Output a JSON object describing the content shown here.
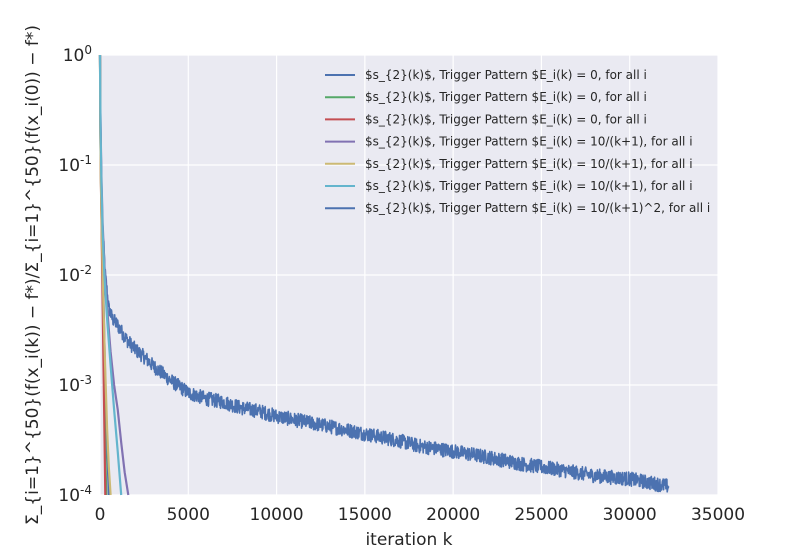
{
  "chart_data": {
    "type": "line",
    "title": "",
    "xlabel": "iteration k",
    "ylabel": "Σ_{i=1}^{50}(f(x_i(k)) − f*)/Σ_{i=1}^{50}(f(x_i(0)) − f*)",
    "xlim": [
      0,
      35000
    ],
    "ylim": [
      0.0001,
      1
    ],
    "yscale": "log",
    "grid": true,
    "legend_position": "top-right",
    "x_ticks": [
      0,
      5000,
      10000,
      15000,
      20000,
      25000,
      30000,
      35000
    ],
    "x_tick_labels": [
      "0",
      "5000",
      "10000",
      "15000",
      "20000",
      "25000",
      "30000",
      "35000"
    ],
    "y_ticks": [
      1,
      0.1,
      0.01,
      0.001,
      0.0001
    ],
    "y_tick_labels": [
      {
        "base": "10",
        "exp": "0"
      },
      {
        "base": "10",
        "exp": "-1"
      },
      {
        "base": "10",
        "exp": "-2"
      },
      {
        "base": "10",
        "exp": "-3"
      },
      {
        "base": "10",
        "exp": "-4"
      }
    ],
    "series": [
      {
        "name": "$s_{2}(k)$, Trigger Pattern $E_i(k) = 0, for all i",
        "color": "#4c72b0",
        "x": [
          0,
          20,
          50,
          100,
          150,
          200,
          300,
          400,
          500
        ],
        "y": [
          1.0,
          0.3,
          0.12,
          0.04,
          0.015,
          0.006,
          0.001,
          0.0003,
          0.0001
        ]
      },
      {
        "name": "$s_{2}(k)$, Trigger Pattern $E_i(k) = 0, for all i",
        "color": "#55a868",
        "x": [
          0,
          20,
          50,
          100,
          150,
          200,
          250,
          300,
          350
        ],
        "y": [
          1.0,
          0.2,
          0.08,
          0.025,
          0.008,
          0.003,
          0.0008,
          0.00025,
          0.0001
        ]
      },
      {
        "name": "$s_{2}(k)$, Trigger Pattern $E_i(k) = 0, for all i",
        "color": "#c44e52",
        "x": [
          0,
          20,
          50,
          100,
          150,
          200,
          250,
          300
        ],
        "y": [
          1.0,
          0.2,
          0.07,
          0.02,
          0.006,
          0.0015,
          0.0004,
          0.0001
        ]
      },
      {
        "name": "$s_{2}(k)$, Trigger Pattern $E_i(k) = 10/(k+1), for all i",
        "color": "#8172b2",
        "x": [
          0,
          30,
          80,
          150,
          250,
          400,
          600,
          800,
          1000,
          1200,
          1400,
          1600
        ],
        "y": [
          1.0,
          0.25,
          0.08,
          0.03,
          0.012,
          0.005,
          0.002,
          0.001,
          0.0006,
          0.0003,
          0.00016,
          0.0001
        ]
      },
      {
        "name": "$s_{2}(k)$, Trigger Pattern $E_i(k) = 10/(k+1), for all i",
        "color": "#ccb974",
        "x": [
          0,
          20,
          50,
          100,
          200,
          300,
          400,
          500,
          600
        ],
        "y": [
          1.0,
          0.2,
          0.07,
          0.025,
          0.005,
          0.0013,
          0.0004,
          0.00018,
          0.0001
        ]
      },
      {
        "name": "$s_{2}(k)$, Trigger Pattern $E_i(k) = 10/(k+1), for all i",
        "color": "#64b5cd",
        "x": [
          0,
          30,
          80,
          150,
          250,
          400,
          600,
          800,
          1000,
          1200
        ],
        "y": [
          1.0,
          0.22,
          0.07,
          0.025,
          0.01,
          0.004,
          0.0015,
          0.0006,
          0.00025,
          0.0001
        ]
      },
      {
        "name": "$s_{2}(k)$, Trigger Pattern $E_i(k) = 10/(k+1)^2, for all i",
        "color": "#4c72b0",
        "noise": true,
        "x": [
          0,
          50,
          100,
          200,
          300,
          500,
          700,
          1000,
          1500,
          2000,
          2500,
          3000,
          4000,
          5000,
          6000,
          7000,
          8000,
          9000,
          10000,
          12000,
          14000,
          15000,
          17000,
          18000,
          20000,
          22000,
          24000,
          26000,
          28000,
          30000,
          32200
        ],
        "y": [
          1.0,
          0.1,
          0.04,
          0.02,
          0.01,
          0.005,
          0.004,
          0.0035,
          0.0026,
          0.0021,
          0.0018,
          0.0015,
          0.0011,
          0.00085,
          0.00075,
          0.0007,
          0.00062,
          0.00058,
          0.00052,
          0.00045,
          0.00039,
          0.00036,
          0.00031,
          0.00028,
          0.00025,
          0.00022,
          0.00019,
          0.00017,
          0.00015,
          0.00014,
          0.00012
        ]
      }
    ]
  }
}
